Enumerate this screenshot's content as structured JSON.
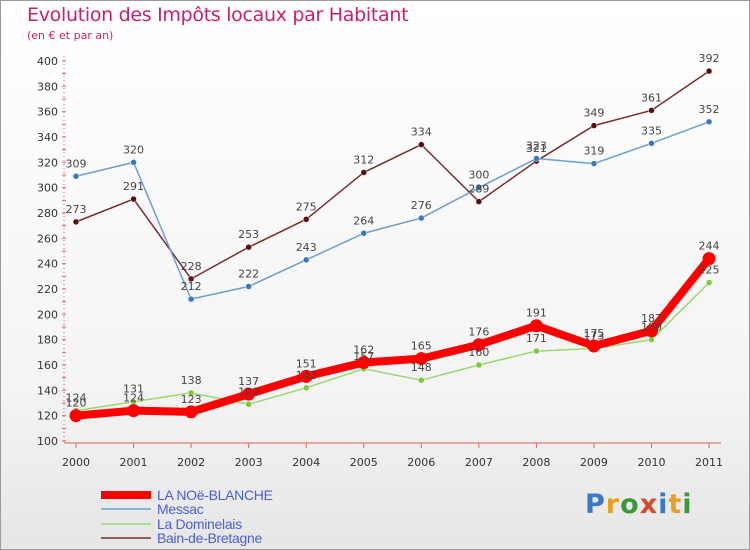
{
  "title": "Evolution des Impôts locaux par Habitant",
  "subtitle": "(en € et par an)",
  "brand": {
    "text": "Proxiti",
    "colors": [
      "#3a78c9",
      "#e8a020",
      "#3a9a3a",
      "#d84a2a",
      "#3a78c9",
      "#e8a020",
      "#3a9a3a"
    ]
  },
  "chart_data": {
    "type": "line",
    "title": "Evolution des Impôts locaux par Habitant",
    "subtitle": "(en € et par an)",
    "xlabel": "",
    "ylabel": "",
    "categories": [
      "2000",
      "2001",
      "2002",
      "2003",
      "2004",
      "2005",
      "2006",
      "2007",
      "2008",
      "2009",
      "2010",
      "2011"
    ],
    "ylim": [
      100,
      400
    ],
    "yticks": [
      100,
      120,
      140,
      160,
      180,
      200,
      220,
      240,
      260,
      280,
      300,
      320,
      340,
      360,
      380,
      400
    ],
    "grid": false,
    "legend_position": "bottom-left",
    "series": [
      {
        "name": "Bain-de-Bretagne",
        "color": "#7a2c2c",
        "marker": "#5a1010",
        "values": [
          273,
          291,
          228,
          253,
          275,
          312,
          334,
          289,
          321,
          349,
          361,
          392
        ],
        "labels": [
          "273",
          "291",
          "228",
          "253",
          "275",
          "312",
          "334",
          "289",
          "321",
          "349",
          "361",
          "392"
        ]
      },
      {
        "name": "Messac",
        "color": "#6a9fd0",
        "marker": "#3a78c0",
        "values": [
          309,
          320,
          212,
          222,
          243,
          264,
          276,
          300,
          323,
          319,
          335,
          352
        ],
        "labels": [
          "309",
          "320",
          "212",
          "222",
          "243",
          "264",
          "276",
          "300",
          "323",
          "319",
          "335",
          "352"
        ]
      },
      {
        "name": "La Dominelais",
        "color": "#9ad870",
        "marker": "#7cc83e",
        "values": [
          124,
          131,
          138,
          129,
          142,
          157,
          148,
          160,
          171,
          173,
          180,
          225
        ],
        "labels": [
          "124",
          "131",
          "138",
          "129",
          "142",
          "157",
          "148",
          "160",
          "171",
          "173",
          "180",
          "225"
        ]
      },
      {
        "name": "LA NOë-BLANCHE",
        "color": "#ff0000",
        "marker": "#ff0000",
        "values": [
          120,
          124,
          123,
          137,
          151,
          162,
          165,
          176,
          191,
          175,
          187,
          244
        ],
        "labels": [
          "120",
          "124",
          "123",
          "137",
          "151",
          "162",
          "165",
          "176",
          "191",
          "175",
          "187",
          "244"
        ]
      }
    ],
    "legend": [
      "LA NOë-BLANCHE",
      "Messac",
      "La Dominelais",
      "Bain-de-Bretagne"
    ]
  }
}
